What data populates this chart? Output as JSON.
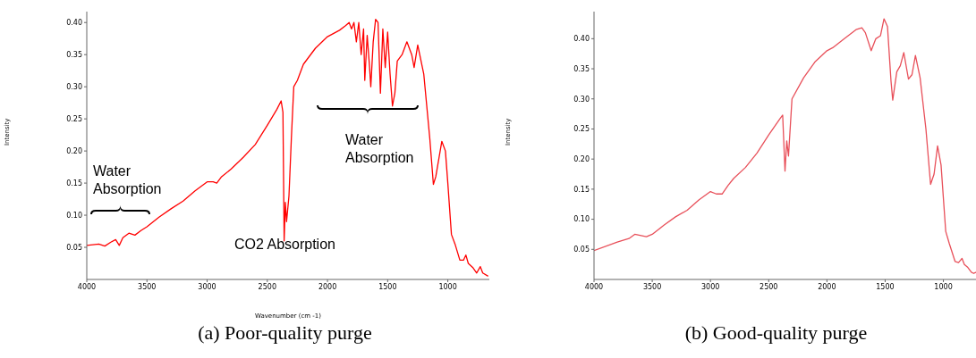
{
  "chart_data": [
    {
      "type": "line",
      "title": "(a) Poor-quality purge",
      "xlabel": "Wavenumber (cm -1)",
      "ylabel": "Intensity",
      "color": "#ff0000",
      "xlim": [
        4000,
        655
      ],
      "ylim": [
        0,
        0.417
      ],
      "xticks": [
        4000,
        3500,
        3000,
        2500,
        2000,
        1500,
        1000
      ],
      "yticks": [
        0.05,
        {
          "value": 0.1,
          "label": "0.10"
        },
        0.15,
        {
          "value": 0.2,
          "label": "0.20"
        },
        0.25,
        {
          "value": 0.3,
          "label": "0.30"
        },
        0.35,
        {
          "value": 0.4,
          "label": "0.40"
        }
      ],
      "x": [
        4000,
        3900,
        3850,
        3800,
        3760,
        3730,
        3700,
        3650,
        3600,
        3550,
        3500,
        3400,
        3300,
        3200,
        3100,
        3000,
        2950,
        2920,
        2880,
        2800,
        2700,
        2600,
        2500,
        2420,
        2385,
        2370,
        2360,
        2350,
        2340,
        2320,
        2300,
        2280,
        2250,
        2200,
        2100,
        2000,
        1900,
        1850,
        1820,
        1800,
        1780,
        1760,
        1740,
        1720,
        1700,
        1690,
        1670,
        1650,
        1640,
        1620,
        1600,
        1580,
        1560,
        1540,
        1520,
        1500,
        1480,
        1460,
        1440,
        1420,
        1380,
        1340,
        1300,
        1280,
        1250,
        1200,
        1150,
        1120,
        1100,
        1050,
        1020,
        1000,
        970,
        940,
        900,
        870,
        850,
        830,
        790,
        760,
        730,
        710,
        665
      ],
      "values": [
        0.053,
        0.055,
        0.052,
        0.058,
        0.062,
        0.053,
        0.065,
        0.072,
        0.069,
        0.076,
        0.082,
        0.097,
        0.11,
        0.122,
        0.138,
        0.152,
        0.152,
        0.15,
        0.16,
        0.172,
        0.19,
        0.21,
        0.24,
        0.265,
        0.278,
        0.26,
        0.06,
        0.12,
        0.09,
        0.13,
        0.22,
        0.3,
        0.31,
        0.335,
        0.36,
        0.378,
        0.388,
        0.395,
        0.4,
        0.39,
        0.4,
        0.37,
        0.4,
        0.35,
        0.39,
        0.31,
        0.38,
        0.33,
        0.3,
        0.37,
        0.405,
        0.4,
        0.29,
        0.39,
        0.33,
        0.385,
        0.32,
        0.27,
        0.29,
        0.34,
        0.35,
        0.37,
        0.35,
        0.33,
        0.365,
        0.32,
        0.22,
        0.148,
        0.16,
        0.215,
        0.2,
        0.15,
        0.07,
        0.055,
        0.03,
        0.03,
        0.038,
        0.025,
        0.018,
        0.01,
        0.02,
        0.01,
        0.005
      ],
      "annotations": [
        "Water Absorption",
        "Water Absorption",
        "CO2 Absorption"
      ]
    },
    {
      "type": "line",
      "title": "(b) Good-quality purge",
      "ylabel": "Intensity",
      "color": "#e8505a",
      "xlim": [
        4000,
        720
      ],
      "ylim": [
        0,
        0.445
      ],
      "xticks": [
        4000,
        3500,
        3000,
        2500,
        2000,
        1500,
        1000
      ],
      "yticks": [
        0.05,
        {
          "value": 0.1,
          "label": "0.10"
        },
        0.15,
        {
          "value": 0.2,
          "label": "0.20"
        },
        0.25,
        {
          "value": 0.3,
          "label": "0.30"
        },
        0.35,
        {
          "value": 0.4,
          "label": "0.40"
        }
      ],
      "x": [
        4000,
        3800,
        3700,
        3650,
        3550,
        3500,
        3400,
        3300,
        3200,
        3100,
        3000,
        2950,
        2900,
        2850,
        2800,
        2700,
        2600,
        2500,
        2400,
        2380,
        2360,
        2345,
        2330,
        2300,
        2200,
        2100,
        2000,
        1950,
        1850,
        1750,
        1700,
        1670,
        1620,
        1580,
        1540,
        1510,
        1480,
        1450,
        1435,
        1400,
        1370,
        1340,
        1300,
        1270,
        1240,
        1200,
        1150,
        1110,
        1080,
        1050,
        1020,
        980,
        950,
        900,
        870,
        840,
        820,
        790,
        760,
        740,
        720
      ],
      "values": [
        0.048,
        0.062,
        0.068,
        0.075,
        0.071,
        0.075,
        0.09,
        0.104,
        0.115,
        0.132,
        0.146,
        0.142,
        0.142,
        0.156,
        0.168,
        0.186,
        0.21,
        0.24,
        0.268,
        0.273,
        0.18,
        0.23,
        0.205,
        0.3,
        0.335,
        0.362,
        0.38,
        0.385,
        0.4,
        0.415,
        0.418,
        0.41,
        0.38,
        0.4,
        0.405,
        0.433,
        0.42,
        0.33,
        0.298,
        0.345,
        0.355,
        0.377,
        0.333,
        0.34,
        0.372,
        0.335,
        0.25,
        0.158,
        0.175,
        0.222,
        0.19,
        0.08,
        0.06,
        0.03,
        0.028,
        0.035,
        0.025,
        0.02,
        0.012,
        0.01,
        0.012
      ]
    }
  ]
}
